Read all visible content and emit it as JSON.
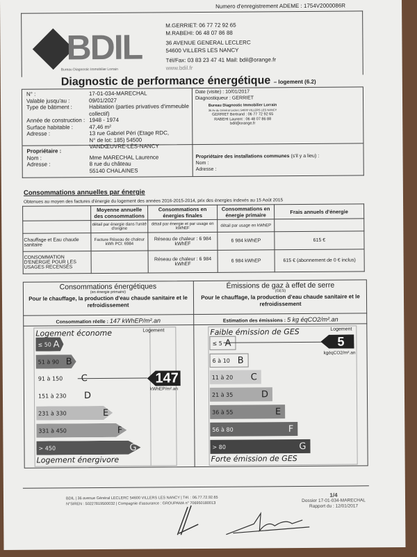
{
  "header": {
    "ademe": "Numero d'enregistrement ADEME : 1754V2000086R",
    "logo_text": "BDIL",
    "logo_sub": "Bureau Diagnostic Immobilier Lorrain",
    "contacts": [
      "M.GERRIET: 06 77 72 92 65",
      "M.RABEHI: 06 48 07 86 88",
      "36 AVENUE GENERAL LECLERC",
      "54600 VILLERS LES NANCY",
      "Tél/Fax: 03 83 23 47 41 Mail: bdil@orange.fr",
      "www.bdil.fr"
    ],
    "title": "Diagnostic de performance énergétique",
    "title_suffix": "– logement (6.2)"
  },
  "info": {
    "rows": [
      [
        "N° :",
        "17-01-034-MARECHAL"
      ],
      [
        "Valable jusqu'au :",
        "09/01/2027"
      ],
      [
        "Type de bâtiment :",
        "Habitation (parties privatives d'immeuble collectif)"
      ],
      [
        "Année de construction :",
        "1948 - 1974"
      ],
      [
        "Surface habitable :",
        "47,46 m²"
      ],
      [
        "Adresse :",
        "13 rue Gabriel Péri (Etage RDC, N° de lot: 185) 54500 VANDŒUVRE-LÈS-NANCY"
      ]
    ],
    "date_visite": "Date (visite) : 10/01/2017",
    "diagnostiqueur": "Diagnostiqueur : GERRIET",
    "stamp": [
      "Bureau Diagnostic Immobilier Lorrain",
      "36 Av du Général Leclerc 54600 VILLERS LES NANCY",
      "GERRIET Bertrand : 06 77 72 92 65",
      "RABEHI Laurent : 06 48 07 86 88",
      "bdil@orange.fr"
    ]
  },
  "owner": {
    "title": "Propriétaire :",
    "nom_label": "Nom :",
    "nom": "Mme MARECHAL Laurence",
    "adresse_label": "Adresse :",
    "adresse1": "8 rue du château",
    "adresse2": "55140 CHALAINES",
    "common_title": "Propriétaire des installations communes",
    "common_note": "(s'il y a lieu) :",
    "common_nom": "Nom :",
    "common_adresse": "Adresse :"
  },
  "consumption": {
    "heading": "Consommations annuelles par énergie",
    "subtitle": "Obtenues au moyen des factures d'énergie du logement des années 2016-2015-2014,  prix des énergies indexés au 15 Août 2015",
    "headers": [
      "",
      "Moyenne annuelle des consommations",
      "Consommations en énergies finales",
      "Consommations en énergie primaire",
      "Frais annuels d'énergie"
    ],
    "subheaders": [
      "",
      "détail par énergie dans l'unité d'origine",
      "détail par énergie et par usage en kWhEF",
      "détail par usage en kWhEP",
      ""
    ],
    "rows": [
      [
        "Chauffage et Eau chaude sanitaire",
        "Facture Réseau de chaleur kWh PCI: 6984",
        "Réseau de chaleur : 6 984 kWhEF",
        "6 984 kWhEP",
        "615 €"
      ],
      [
        "CONSOMMATION D'ENERGIE POUR LES USAGES RECENSÉS",
        "",
        "Réseau de chaleur : 6 984 kWhEF",
        "6 984 kWhEP",
        "615 € (abonnement de 0 € inclus)"
      ]
    ]
  },
  "energy": {
    "title": "Consommations énergétiques",
    "sub": "(en énergie primaire)",
    "desc": "Pour le chauffage, la production d'eau chaude sanitaire et le refroidissement",
    "reading_label": "Consommation réelle :",
    "reading": "147 kWhEP/m².an",
    "top": "Logement économe",
    "bottom": "Logement énergivore",
    "col": "Logement",
    "value": "147",
    "unit": "kWhEP/m².an",
    "current_class": "C",
    "classes": [
      {
        "range": "≤ 50",
        "letter": "A",
        "color": "#555"
      },
      {
        "range": "51 à 90",
        "letter": "B",
        "color": "#777"
      },
      {
        "range": "91 à 150",
        "letter": "C",
        "color": "#eeeeec"
      },
      {
        "range": "151 à 230",
        "letter": "D",
        "color": "#eeeeec"
      },
      {
        "range": "231 à 330",
        "letter": "E",
        "color": "#bbb"
      },
      {
        "range": "331 à 450",
        "letter": "F",
        "color": "#999"
      },
      {
        "range": "> 450",
        "letter": "G",
        "color": "#555"
      }
    ]
  },
  "ges": {
    "title": "Émissions de gaz à effet de serre",
    "sub": "(GES)",
    "desc": "Pour le chauffage, la production d'eau chaude sanitaire et le refroidissement",
    "reading_label": "Estimation des émissions :",
    "reading": "5 kg éqCO2/m².an",
    "top": "Faible émission de GES",
    "bottom": "Forte émission de GES",
    "col": "Logement",
    "value": "5",
    "unit": "kgéqCO2/m².an",
    "current_class": "A",
    "classes": [
      {
        "range": "≤ 5",
        "letter": "A",
        "color": "#eeeeec"
      },
      {
        "range": "6 à 10",
        "letter": "B",
        "color": "#eeeeec"
      },
      {
        "range": "11 à 20",
        "letter": "C",
        "color": "#ccc"
      },
      {
        "range": "21 à 35",
        "letter": "D",
        "color": "#aaa"
      },
      {
        "range": "36 à 55",
        "letter": "E",
        "color": "#888"
      },
      {
        "range": "56 à 80",
        "letter": "F",
        "color": "#666"
      },
      {
        "range": "> 80",
        "letter": "G",
        "color": "#444"
      }
    ]
  },
  "footer": {
    "line1": "BDIL | 36 avenue Général LECLERC 54600 VILLERS LES NANCY | Tél. : 06.77.72.92.65",
    "line2": "N°SIREN : 50227819500032 | Compagnie d'assurance : GROUPAMA n° 70695018001З",
    "page": "1/4",
    "dossier": "Dossier 17-01-034-MARECHAL",
    "rapport": "Rapport du : 12/01/2017"
  }
}
